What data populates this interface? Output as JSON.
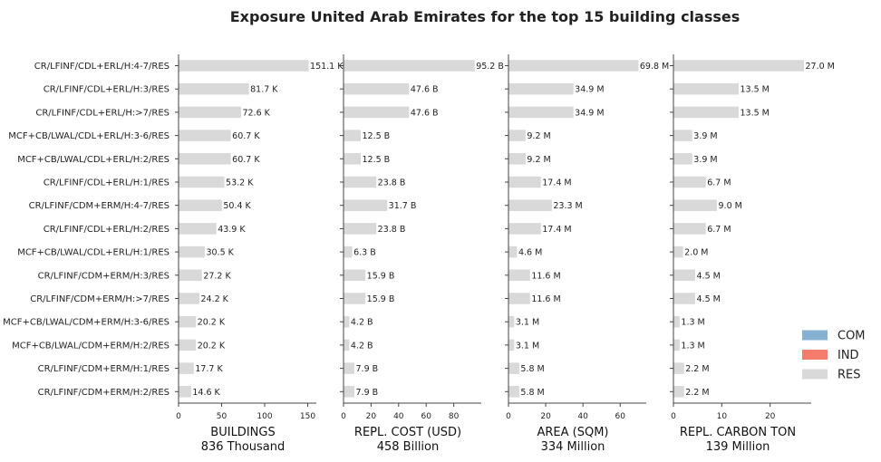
{
  "chart_data": {
    "type": "bar",
    "title": "Exposure United Arab Emirates for the top 15 building classes",
    "categories": [
      "CR/LFINF/CDL+ERL/H:4-7/RES",
      "CR/LFINF/CDL+ERL/H:3/RES",
      "CR/LFINF/CDL+ERL/H:>7/RES",
      "MCF+CB/LWAL/CDL+ERL/H:3-6/RES",
      "MCF+CB/LWAL/CDL+ERL/H:2/RES",
      "CR/LFINF/CDL+ERL/H:1/RES",
      "CR/LFINF/CDM+ERM/H:4-7/RES",
      "CR/LFINF/CDL+ERL/H:2/RES",
      "MCF+CB/LWAL/CDL+ERL/H:1/RES",
      "CR/LFINF/CDM+ERM/H:3/RES",
      "CR/LFINF/CDM+ERM/H:>7/RES",
      "MCF+CB/LWAL/CDM+ERM/H:3-6/RES",
      "MCF+CB/LWAL/CDM+ERM/H:2/RES",
      "CR/LFINF/CDM+ERM/H:1/RES",
      "CR/LFINF/CDM+ERM/H:2/RES"
    ],
    "panels": [
      {
        "xlabel": "BUILDINGS",
        "total": "836 Thousand",
        "xlim": [
          0,
          160
        ],
        "ticks": [
          0,
          50,
          100,
          150
        ],
        "values": [
          151.1,
          81.7,
          72.6,
          60.7,
          60.7,
          53.2,
          50.4,
          43.9,
          30.5,
          27.2,
          24.2,
          20.2,
          20.2,
          17.7,
          14.6
        ],
        "labels": [
          "151.1 K",
          "81.7 K",
          "72.6 K",
          "60.7 K",
          "60.7 K",
          "53.2 K",
          "50.4 K",
          "43.9 K",
          "30.5 K",
          "27.2 K",
          "24.2 K",
          "20.2 K",
          "20.2 K",
          "17.7 K",
          "14.6 K"
        ]
      },
      {
        "xlabel": "REPL. COST (USD)",
        "total": "458 Billion",
        "xlim": [
          0,
          100
        ],
        "ticks": [
          0,
          20,
          40,
          60,
          80
        ],
        "values": [
          95.2,
          47.6,
          47.6,
          12.5,
          12.5,
          23.8,
          31.7,
          23.8,
          6.3,
          15.9,
          15.9,
          4.2,
          4.2,
          7.9,
          7.9
        ],
        "labels": [
          "95.2 B",
          "47.6 B",
          "47.6 B",
          "12.5 B",
          "12.5 B",
          "23.8 B",
          "31.7 B",
          "23.8 B",
          "6.3 B",
          "15.9 B",
          "15.9 B",
          "4.2 B",
          "4.2 B",
          "7.9 B",
          "7.9 B"
        ]
      },
      {
        "xlabel": "AREA (SQM)",
        "total": "334 Million",
        "xlim": [
          0,
          74
        ],
        "ticks": [
          0,
          20,
          40,
          60
        ],
        "values": [
          69.8,
          34.9,
          34.9,
          9.2,
          9.2,
          17.4,
          23.3,
          17.4,
          4.6,
          11.6,
          11.6,
          3.1,
          3.1,
          5.8,
          5.8
        ],
        "labels": [
          "69.8 M",
          "34.9 M",
          "34.9 M",
          "9.2 M",
          "9.2 M",
          "17.4 M",
          "23.3 M",
          "17.4 M",
          "4.6 M",
          "11.6 M",
          "11.6 M",
          "3.1 M",
          "3.1 M",
          "5.8 M",
          "5.8 M"
        ]
      },
      {
        "xlabel": "REPL. CARBON TON",
        "total": "139 Million",
        "xlim": [
          0,
          28.5
        ],
        "ticks": [
          0,
          10,
          20
        ],
        "values": [
          27.0,
          13.5,
          13.5,
          3.9,
          3.9,
          6.7,
          9.0,
          6.7,
          2.0,
          4.5,
          4.5,
          1.3,
          1.3,
          2.2,
          2.2
        ],
        "labels": [
          "27.0 M",
          "13.5 M",
          "13.5 M",
          "3.9 M",
          "3.9 M",
          "6.7 M",
          "9.0 M",
          "6.7 M",
          "2.0 M",
          "4.5 M",
          "4.5 M",
          "1.3 M",
          "1.3 M",
          "2.2 M",
          "2.2 M"
        ]
      }
    ],
    "legend": {
      "position": "right",
      "entries": [
        {
          "name": "COM",
          "color": "#85b0d1"
        },
        {
          "name": "IND",
          "color": "#f47c6c"
        },
        {
          "name": "RES",
          "color": "#d9d9d9"
        }
      ]
    },
    "bar_color": "#d9d9d9"
  }
}
